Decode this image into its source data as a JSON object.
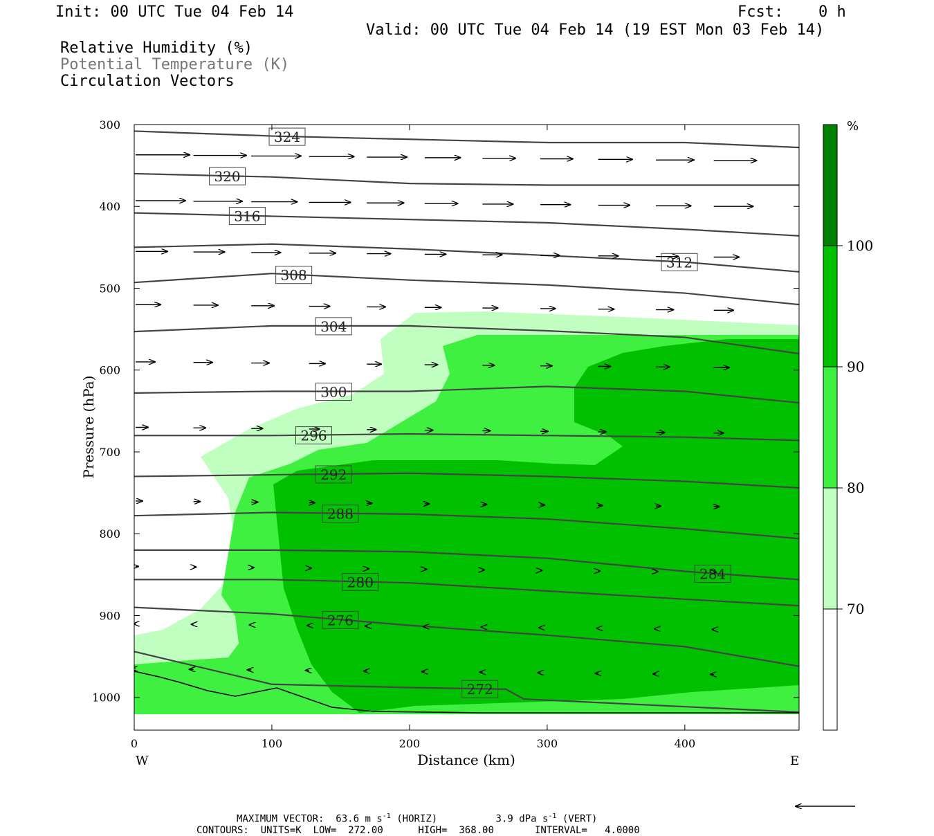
{
  "header": {
    "init": "Init: 00 UTC Tue 04 Feb 14",
    "fcst_label": "Fcst:",
    "fcst_value": "0 h",
    "valid": "Valid: 00 UTC Tue 04 Feb 14 (19 EST Mon 03 Feb 14)"
  },
  "legend": {
    "rh": "Relative Humidity (%)",
    "theta": "Potential Temperature (K)",
    "vectors": "Circulation Vectors"
  },
  "colors": {
    "rh_70_80": "#c0ffc0",
    "rh_80_90": "#40f040",
    "rh_90_100": "#00c000",
    "rh_100": "#008000",
    "contour": "#444444",
    "white": "#ffffff"
  },
  "footer": {
    "max_vector_label": "MAXIMUM VECTOR:",
    "horiz_value": "63.6 m s",
    "horiz_unit": "(HORIZ)",
    "vert_value": "3.9 dPa s",
    "vert_unit": "(VERT)",
    "exp": "-1",
    "contours_label": "CONTOURS:",
    "units": "UNITS=K",
    "low": "LOW=",
    "low_val": "272.00",
    "high": "HIGH=",
    "high_val": "368.00",
    "interval": "INTERVAL=",
    "interval_val": "4.0000"
  },
  "chart_data": {
    "type": "cross-section",
    "xlabel": "Distance (km)",
    "ylabel": "Pressure (hPa)",
    "x_range": [
      0,
      483
    ],
    "y_range_hpa": [
      300,
      1040
    ],
    "x_ticks": [
      "0",
      "100",
      "200",
      "300",
      "400"
    ],
    "y_ticks": [
      "300",
      "400",
      "500",
      "600",
      "700",
      "800",
      "900",
      "1000"
    ],
    "x_end_labels": {
      "left": "W",
      "right": "E"
    },
    "colorbar": {
      "unit": "%",
      "ticks": [
        "100",
        "90",
        "80",
        "70"
      ],
      "levels": [
        70,
        80,
        90,
        100
      ]
    },
    "theta_contours": [
      {
        "value": 324,
        "label": "324",
        "points": [
          [
            0,
            308
          ],
          [
            100,
            314
          ],
          [
            200,
            318
          ],
          [
            300,
            322
          ],
          [
            400,
            322
          ],
          [
            483,
            328
          ]
        ]
      },
      {
        "value": 320,
        "label": "320",
        "points": [
          [
            0,
            360
          ],
          [
            100,
            364
          ],
          [
            200,
            372
          ],
          [
            300,
            374
          ],
          [
            400,
            374
          ],
          [
            483,
            374
          ]
        ]
      },
      {
        "value": 316,
        "label": "316",
        "points": [
          [
            0,
            408
          ],
          [
            100,
            412
          ],
          [
            200,
            416
          ],
          [
            300,
            420
          ],
          [
            400,
            428
          ],
          [
            483,
            436
          ]
        ]
      },
      {
        "value": 312,
        "label": "312",
        "points": [
          [
            0,
            450
          ],
          [
            100,
            446
          ],
          [
            200,
            452
          ],
          [
            300,
            460
          ],
          [
            400,
            468
          ],
          [
            483,
            480
          ]
        ]
      },
      {
        "value": 308,
        "label": "308",
        "points": [
          [
            0,
            493
          ],
          [
            100,
            482
          ],
          [
            200,
            490
          ],
          [
            300,
            496
          ],
          [
            400,
            506
          ],
          [
            483,
            520
          ]
        ]
      },
      {
        "value": 304,
        "label": "304",
        "points": [
          [
            0,
            553
          ],
          [
            100,
            546
          ],
          [
            200,
            546
          ],
          [
            300,
            552
          ],
          [
            400,
            560
          ],
          [
            483,
            580
          ]
        ]
      },
      {
        "value": 300,
        "label": "300",
        "points": [
          [
            0,
            628
          ],
          [
            100,
            626
          ],
          [
            200,
            626
          ],
          [
            300,
            620
          ],
          [
            400,
            626
          ],
          [
            483,
            640
          ]
        ]
      },
      {
        "value": 296,
        "label": "296",
        "points": [
          [
            0,
            680
          ],
          [
            100,
            680
          ],
          [
            200,
            678
          ],
          [
            300,
            680
          ],
          [
            400,
            682
          ],
          [
            483,
            686
          ]
        ]
      },
      {
        "value": 292,
        "label": "292",
        "points": [
          [
            0,
            730
          ],
          [
            100,
            728
          ],
          [
            200,
            726
          ],
          [
            300,
            730
          ],
          [
            400,
            736
          ],
          [
            483,
            744
          ]
        ]
      },
      {
        "value": 288,
        "label": "288",
        "points": [
          [
            0,
            778
          ],
          [
            100,
            774
          ],
          [
            200,
            776
          ],
          [
            300,
            782
          ],
          [
            400,
            794
          ],
          [
            483,
            806
          ]
        ]
      },
      {
        "value": 284,
        "label": "284",
        "points": [
          [
            0,
            820
          ],
          [
            100,
            820
          ],
          [
            200,
            822
          ],
          [
            300,
            830
          ],
          [
            400,
            846
          ],
          [
            483,
            856
          ]
        ]
      },
      {
        "value": 280,
        "label": "280",
        "points": [
          [
            0,
            856
          ],
          [
            100,
            856
          ],
          [
            200,
            860
          ],
          [
            300,
            870
          ],
          [
            400,
            880
          ],
          [
            483,
            888
          ]
        ]
      },
      {
        "value": 276,
        "label": "276",
        "points": [
          [
            0,
            890
          ],
          [
            100,
            898
          ],
          [
            200,
            912
          ],
          [
            300,
            924
          ],
          [
            400,
            938
          ],
          [
            483,
            962
          ]
        ]
      },
      {
        "value": 272,
        "label": "272",
        "points": [
          [
            0,
            944
          ],
          [
            100,
            984
          ],
          [
            200,
            988
          ],
          [
            270,
            990
          ],
          [
            283,
            1002
          ],
          [
            483,
            1018
          ]
        ]
      }
    ],
    "vectors": {
      "direction": "west-to-east",
      "max_horizontal": "63.6 m s-1",
      "max_vertical": "3.9 dPa s-1"
    }
  }
}
